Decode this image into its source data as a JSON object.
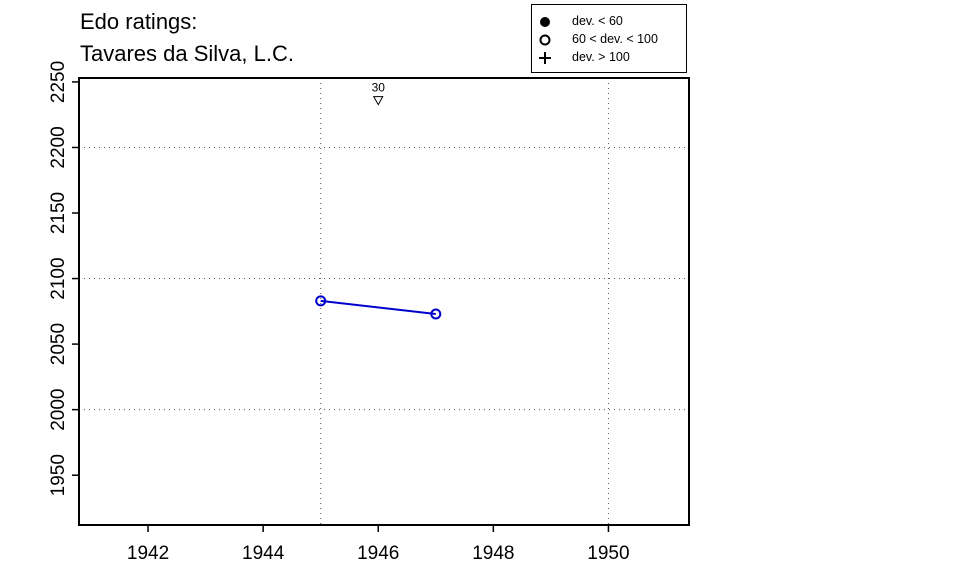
{
  "chart_data": {
    "type": "line",
    "title_lines": [
      "Edo ratings:",
      "Tavares da Silva, L.C."
    ],
    "xlabel": "",
    "ylabel": "",
    "xlim": [
      1940.8,
      1951.4
    ],
    "ylim": [
      1912,
      2253
    ],
    "x_ticks": [
      1942,
      1944,
      1946,
      1948,
      1950
    ],
    "y_ticks": [
      1950,
      2000,
      2050,
      2100,
      2150,
      2200,
      2250
    ],
    "x_grid": [
      1945,
      1950
    ],
    "y_grid": [
      2000,
      2100,
      2200
    ],
    "grid": "dotted",
    "series": [
      {
        "color": "#0000cc",
        "marker": "open-circle",
        "x": [
          1945,
          1947
        ],
        "y": [
          2083,
          2073
        ]
      }
    ],
    "annotations": [
      {
        "text": "30",
        "x": 1946,
        "y": 2235,
        "marker": "down-triangle"
      }
    ],
    "legend": {
      "position": "top-right",
      "items": [
        {
          "label": "dev. < 60",
          "symbol": "filled-circle"
        },
        {
          "label": "60 < dev. < 100",
          "symbol": "open-circle"
        },
        {
          "label": "dev. > 100",
          "symbol": "plus"
        }
      ]
    }
  }
}
